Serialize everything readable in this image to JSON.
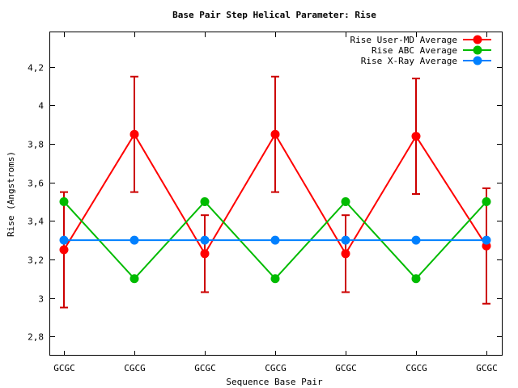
{
  "chart_data": {
    "type": "line",
    "title": "Base Pair Step Helical Parameter: Rise",
    "xlabel": "Sequence Base Pair",
    "ylabel": "Rise (Angstroms)",
    "categories": [
      "GCGC",
      "CGCG",
      "GCGC",
      "CGCG",
      "GCGC",
      "CGCG",
      "GCGC"
    ],
    "ylim": [
      2.7,
      4.38
    ],
    "yticks": [
      2.8,
      3,
      3.2,
      3.4,
      3.6,
      3.8,
      4,
      4.2
    ],
    "ytick_labels": [
      "2,8",
      "3",
      "3,2",
      "3,4",
      "3,6",
      "3,8",
      "4",
      "4,2"
    ],
    "grid": false,
    "legend_position": "top-right",
    "series": [
      {
        "name": "Rise User-MD Average",
        "color": "#ff0000",
        "errorbar_color": "#cc0000",
        "values": [
          3.25,
          3.85,
          3.23,
          3.85,
          3.23,
          3.84,
          3.27
        ],
        "err_low": [
          2.95,
          3.55,
          3.03,
          3.55,
          3.03,
          3.54,
          2.97
        ],
        "err_high": [
          3.55,
          4.15,
          3.43,
          4.15,
          3.43,
          4.14,
          3.57
        ]
      },
      {
        "name": "Rise ABC Average",
        "color": "#00bb00",
        "values": [
          3.5,
          3.1,
          3.5,
          3.1,
          3.5,
          3.1,
          3.5
        ]
      },
      {
        "name": "Rise X-Ray Average",
        "color": "#0080ff",
        "values": [
          3.3,
          3.3,
          3.3,
          3.3,
          3.3,
          3.3,
          3.3
        ]
      }
    ]
  }
}
